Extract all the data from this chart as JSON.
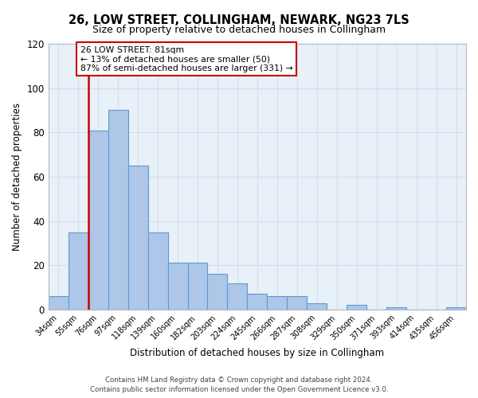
{
  "title": "26, LOW STREET, COLLINGHAM, NEWARK, NG23 7LS",
  "subtitle": "Size of property relative to detached houses in Collingham",
  "xlabel": "Distribution of detached houses by size in Collingham",
  "ylabel": "Number of detached properties",
  "bin_labels": [
    "34sqm",
    "55sqm",
    "76sqm",
    "97sqm",
    "118sqm",
    "139sqm",
    "160sqm",
    "182sqm",
    "203sqm",
    "224sqm",
    "245sqm",
    "266sqm",
    "287sqm",
    "308sqm",
    "329sqm",
    "350sqm",
    "371sqm",
    "393sqm",
    "414sqm",
    "435sqm",
    "456sqm"
  ],
  "bar_values": [
    6,
    35,
    81,
    90,
    65,
    35,
    21,
    21,
    16,
    12,
    7,
    6,
    6,
    3,
    0,
    2,
    0,
    1,
    0,
    0,
    1
  ],
  "bar_color": "#aec6e8",
  "bar_edge_color": "#5b9bd5",
  "annotation_text": "26 LOW STREET: 81sqm\n← 13% of detached houses are smaller (50)\n87% of semi-detached houses are larger (331) →",
  "annotation_box_color": "#ffffff",
  "annotation_box_edge_color": "#cc0000",
  "annotation_text_color": "#000000",
  "vline_color": "#cc0000",
  "ylim": [
    0,
    120
  ],
  "yticks": [
    0,
    20,
    40,
    60,
    80,
    100,
    120
  ],
  "footer_line1": "Contains HM Land Registry data © Crown copyright and database right 2024.",
  "footer_line2": "Contains public sector information licensed under the Open Government Licence v3.0.",
  "grid_color": "#d0e0f0",
  "background_color": "#e8f0f8",
  "figure_background": "#ffffff"
}
